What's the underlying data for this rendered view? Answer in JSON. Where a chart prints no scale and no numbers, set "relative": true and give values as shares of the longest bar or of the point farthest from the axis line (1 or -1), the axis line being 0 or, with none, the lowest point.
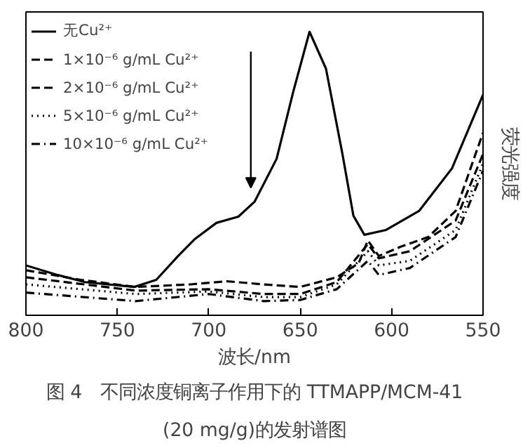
{
  "chart_data": {
    "type": "line",
    "relative": true,
    "xlabel": "波长/nm",
    "ylabel": "荧光强度",
    "xlim": [
      800,
      550
    ],
    "xticks": [
      800,
      750,
      700,
      650,
      600,
      550
    ],
    "legend": "top left",
    "grid": false,
    "annotations": [
      "图 4　不同浓度铜离子作用下的 TTMAPP/MCM-41",
      "(20 mg/g)的发射谱图"
    ],
    "series": [
      {
        "name": "无Cu²⁺",
        "color": "#000000",
        "line_style": "solid",
        "x": [
          800,
          782.6,
          767.7,
          740.7,
          728.7,
          716.8,
          707.8,
          695.8,
          683.8,
          674.9,
          662.9,
          653.9,
          644.9,
          635.9,
          626.9,
          620.9,
          614.9,
          603,
          585,
          567,
          550
        ],
        "values": [
          0.176,
          0.142,
          0.117,
          0.1,
          0.125,
          0.209,
          0.268,
          0.326,
          0.348,
          0.401,
          0.552,
          0.786,
          1.0,
          0.87,
          0.569,
          0.351,
          0.284,
          0.301,
          0.368,
          0.518,
          0.778
        ]
      },
      {
        "name": "1×10⁻⁶ g/mL Cu²⁺",
        "color": "#000000",
        "line_style": "dashed",
        "x": [
          800,
          770,
          740,
          710,
          690,
          670,
          650,
          630,
          618,
          613,
          607,
          595,
          580,
          565,
          550
        ],
        "values": [
          0.159,
          0.125,
          0.1,
          0.109,
          0.12,
          0.109,
          0.1,
          0.134,
          0.184,
          0.264,
          0.209,
          0.242,
          0.276,
          0.368,
          0.644
        ]
      },
      {
        "name": "2×10⁻⁶ g/mL Cu²⁺",
        "color": "#000000",
        "line_style": "dashed",
        "x": [
          800,
          740,
          700,
          670,
          650,
          630,
          613,
          607,
          590,
          565,
          550
        ],
        "values": [
          0.134,
          0.087,
          0.092,
          0.075,
          0.075,
          0.117,
          0.251,
          0.201,
          0.226,
          0.334,
          0.569
        ]
      },
      {
        "name": "5×10⁻⁶ g/mL Cu²⁺",
        "color": "#000000",
        "line_style": "dotted",
        "x": [
          800,
          740,
          700,
          670,
          650,
          630,
          613,
          607,
          590,
          565,
          550
        ],
        "values": [
          0.109,
          0.075,
          0.084,
          0.064,
          0.064,
          0.109,
          0.226,
          0.176,
          0.192,
          0.301,
          0.535
        ]
      },
      {
        "name": "10×10⁻⁶ g/mL Cu²⁺",
        "color": "#000000",
        "line_style": "dashdot",
        "x": [
          800,
          740,
          700,
          670,
          650,
          630,
          613,
          607,
          590,
          565,
          550
        ],
        "values": [
          0.08,
          0.05,
          0.075,
          0.05,
          0.054,
          0.092,
          0.192,
          0.142,
          0.167,
          0.276,
          0.51
        ]
      }
    ]
  }
}
